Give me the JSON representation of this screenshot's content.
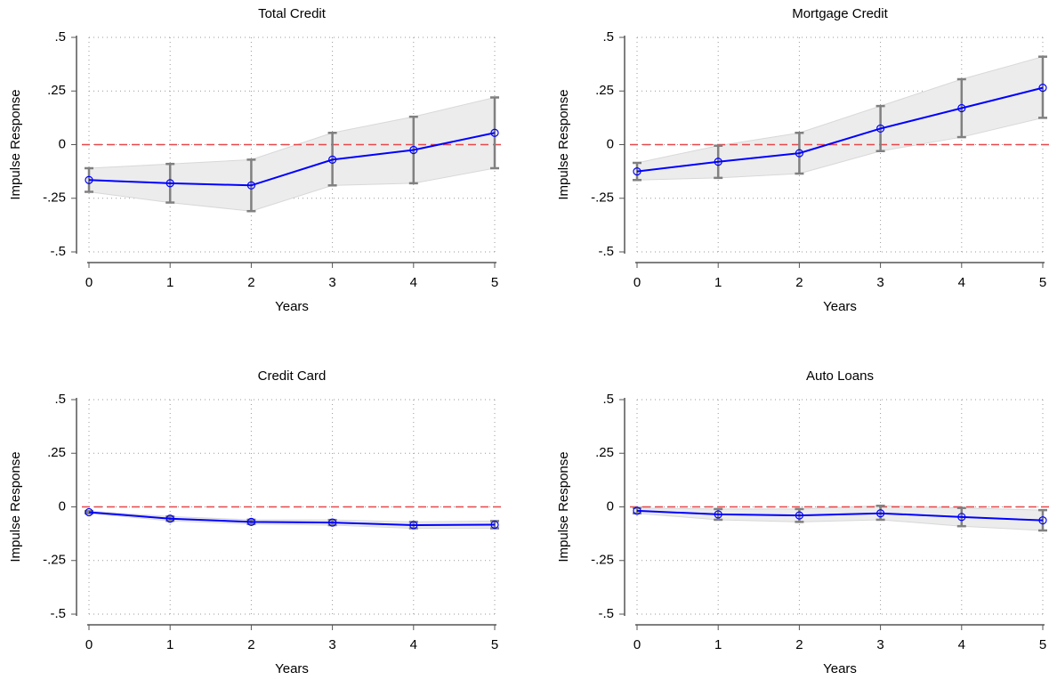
{
  "chart_data": [
    {
      "type": "line",
      "title": "Total Credit",
      "xlabel": "Years",
      "ylabel": "Impulse Response",
      "x": [
        0,
        1,
        2,
        3,
        4,
        5
      ],
      "xlim": [
        0,
        5
      ],
      "xticks": [
        0,
        1,
        2,
        3,
        4,
        5
      ],
      "ylim": [
        -0.5,
        0.5
      ],
      "yticks": [
        {
          "value": -0.5,
          "label": "-.5"
        },
        {
          "value": -0.25,
          "label": "-.25"
        },
        0,
        {
          "value": 0.25,
          "label": ".25"
        },
        {
          "value": 0.5,
          "label": ".5"
        }
      ],
      "grid": true,
      "hline": 0,
      "hline_color": "#e8474a",
      "band_color": "#ececec",
      "errorbar_color": "#808080",
      "series": [
        {
          "color": "#0000ff",
          "values": [
            -0.165,
            -0.18,
            -0.19,
            -0.07,
            -0.025,
            0.055
          ],
          "lower": [
            -0.22,
            -0.27,
            -0.31,
            -0.19,
            -0.18,
            -0.11
          ],
          "upper": [
            -0.11,
            -0.09,
            -0.07,
            0.055,
            0.13,
            0.22
          ]
        }
      ]
    },
    {
      "type": "line",
      "title": "Mortgage Credit",
      "xlabel": "Years",
      "ylabel": "Impulse Response",
      "x": [
        0,
        1,
        2,
        3,
        4,
        5
      ],
      "xlim": [
        0,
        5
      ],
      "xticks": [
        0,
        1,
        2,
        3,
        4,
        5
      ],
      "ylim": [
        -0.5,
        0.5
      ],
      "yticks": [
        {
          "value": -0.5,
          "label": "-.5"
        },
        {
          "value": -0.25,
          "label": "-.25"
        },
        0,
        {
          "value": 0.25,
          "label": ".25"
        },
        {
          "value": 0.5,
          "label": ".5"
        }
      ],
      "grid": true,
      "hline": 0,
      "hline_color": "#e8474a",
      "band_color": "#ececec",
      "errorbar_color": "#808080",
      "series": [
        {
          "color": "#0000ff",
          "values": [
            -0.125,
            -0.08,
            -0.04,
            0.075,
            0.17,
            0.265
          ],
          "lower": [
            -0.165,
            -0.155,
            -0.135,
            -0.03,
            0.035,
            0.125
          ],
          "upper": [
            -0.085,
            -0.005,
            0.055,
            0.18,
            0.305,
            0.41
          ]
        }
      ]
    },
    {
      "type": "line",
      "title": "Credit Card",
      "xlabel": "Years",
      "ylabel": "Impulse Response",
      "x": [
        0,
        1,
        2,
        3,
        4,
        5
      ],
      "xlim": [
        0,
        5
      ],
      "xticks": [
        0,
        1,
        2,
        3,
        4,
        5
      ],
      "ylim": [
        -0.5,
        0.5
      ],
      "yticks": [
        {
          "value": -0.5,
          "label": "-.5"
        },
        {
          "value": -0.25,
          "label": "-.25"
        },
        0,
        {
          "value": 0.25,
          "label": ".25"
        },
        {
          "value": 0.5,
          "label": ".5"
        }
      ],
      "grid": true,
      "hline": 0,
      "hline_color": "#e8474a",
      "band_color": "#ececec",
      "errorbar_color": "#808080",
      "series": [
        {
          "color": "#0000ff",
          "values": [
            -0.025,
            -0.055,
            -0.07,
            -0.073,
            -0.085,
            -0.083
          ],
          "lower": [
            -0.03,
            -0.065,
            -0.08,
            -0.085,
            -0.1,
            -0.1
          ],
          "upper": [
            -0.02,
            -0.045,
            -0.06,
            -0.061,
            -0.07,
            -0.066
          ]
        }
      ]
    },
    {
      "type": "line",
      "title": "Auto Loans",
      "xlabel": "Years",
      "ylabel": "Impulse Response",
      "x": [
        0,
        1,
        2,
        3,
        4,
        5
      ],
      "xlim": [
        0,
        5
      ],
      "xticks": [
        0,
        1,
        2,
        3,
        4,
        5
      ],
      "ylim": [
        -0.5,
        0.5
      ],
      "yticks": [
        {
          "value": -0.5,
          "label": "-.5"
        },
        {
          "value": -0.25,
          "label": "-.25"
        },
        0,
        {
          "value": 0.25,
          "label": ".25"
        },
        {
          "value": 0.5,
          "label": ".5"
        }
      ],
      "grid": true,
      "hline": 0,
      "hline_color": "#e8474a",
      "band_color": "#ececec",
      "errorbar_color": "#808080",
      "series": [
        {
          "color": "#0000ff",
          "values": [
            -0.018,
            -0.035,
            -0.04,
            -0.03,
            -0.047,
            -0.063
          ],
          "lower": [
            -0.03,
            -0.06,
            -0.07,
            -0.06,
            -0.09,
            -0.11
          ],
          "upper": [
            -0.005,
            -0.01,
            -0.01,
            0.005,
            -0.005,
            -0.015
          ]
        }
      ]
    }
  ]
}
